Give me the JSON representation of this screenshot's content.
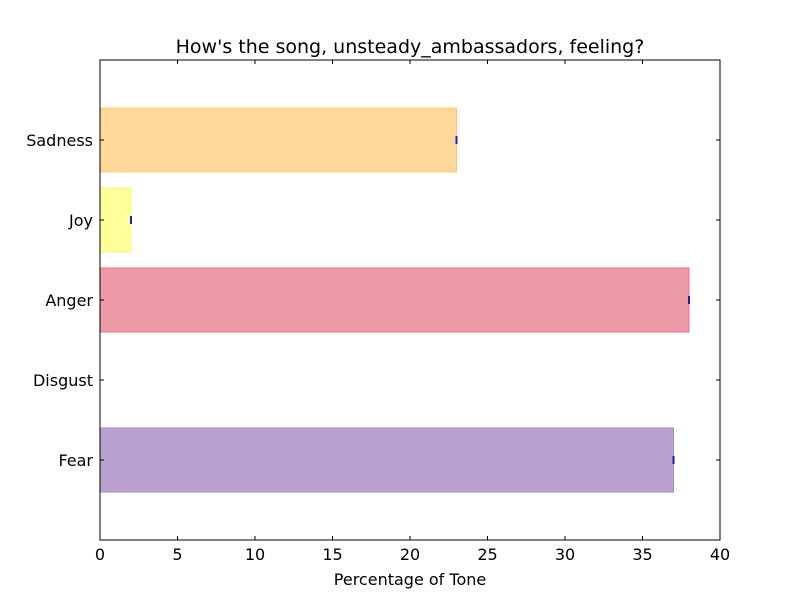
{
  "chart_data": {
    "type": "bar",
    "orientation": "horizontal",
    "title": "How's the song, unsteady_ambassadors, feeling?",
    "xlabel": "Percentage of Tone",
    "ylabel": "",
    "xlim": [
      0,
      40
    ],
    "xticks": [
      "0",
      "5",
      "10",
      "15",
      "20",
      "25",
      "30",
      "35",
      "40"
    ],
    "grid": false,
    "legend": "none",
    "categories": [
      "Fear",
      "Disgust",
      "Anger",
      "Joy",
      "Sadness"
    ],
    "values": [
      37,
      0,
      38,
      2,
      23
    ],
    "colors": [
      "#b9a2d0",
      "#8fd18f",
      "#ee9aa7",
      "#ffff99",
      "#ffd899"
    ],
    "edge_colors": [
      "#a888c8",
      "#6cc06c",
      "#e8728a",
      "#f5f57a",
      "#fcc77a"
    ],
    "marker_color": "#1f1fbf"
  }
}
